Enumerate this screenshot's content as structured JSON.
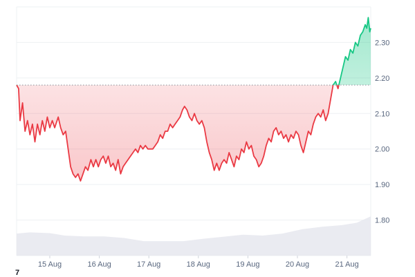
{
  "chart_data": {
    "type": "area",
    "baseline": 2.18,
    "ylim": [
      1.7,
      2.4
    ],
    "y_ticks": [
      "1.80",
      "1.90",
      "2.00",
      "2.10",
      "2.20",
      "2.30"
    ],
    "x_ticks": [
      "15 Aug",
      "16 Aug",
      "17 Aug",
      "18 Aug",
      "19 Aug",
      "20 Aug",
      "21 Aug"
    ],
    "xlim_days": [
      14.33,
      21.48
    ],
    "grid": true,
    "colors": {
      "below_baseline": "#ea3943",
      "above_baseline": "#16c784",
      "volume": "#e6e8ee",
      "grid": "#eef0f3"
    },
    "series": [
      {
        "values": [
          [
            14.33,
            2.18
          ],
          [
            14.37,
            2.17
          ],
          [
            14.4,
            2.08
          ],
          [
            14.45,
            2.13
          ],
          [
            14.5,
            2.05
          ],
          [
            14.55,
            2.08
          ],
          [
            14.6,
            2.04
          ],
          [
            14.65,
            2.07
          ],
          [
            14.7,
            2.02
          ],
          [
            14.75,
            2.07
          ],
          [
            14.8,
            2.04
          ],
          [
            14.85,
            2.08
          ],
          [
            14.9,
            2.05
          ],
          [
            14.95,
            2.09
          ],
          [
            15.0,
            2.06
          ],
          [
            15.05,
            2.08
          ],
          [
            15.1,
            2.06
          ],
          [
            15.17,
            2.09
          ],
          [
            15.22,
            2.06
          ],
          [
            15.27,
            2.04
          ],
          [
            15.32,
            2.05
          ],
          [
            15.37,
            2.0
          ],
          [
            15.42,
            1.95
          ],
          [
            15.47,
            1.93
          ],
          [
            15.52,
            1.92
          ],
          [
            15.57,
            1.93
          ],
          [
            15.62,
            1.91
          ],
          [
            15.67,
            1.93
          ],
          [
            15.72,
            1.95
          ],
          [
            15.77,
            1.94
          ],
          [
            15.83,
            1.97
          ],
          [
            15.88,
            1.95
          ],
          [
            15.93,
            1.97
          ],
          [
            15.98,
            1.95
          ],
          [
            16.03,
            1.97
          ],
          [
            16.08,
            1.98
          ],
          [
            16.13,
            1.96
          ],
          [
            16.18,
            1.98
          ],
          [
            16.23,
            1.95
          ],
          [
            16.28,
            1.96
          ],
          [
            16.33,
            1.94
          ],
          [
            16.38,
            1.97
          ],
          [
            16.43,
            1.93
          ],
          [
            16.48,
            1.95
          ],
          [
            16.53,
            1.96
          ],
          [
            16.58,
            1.97
          ],
          [
            16.63,
            1.98
          ],
          [
            16.68,
            1.99
          ],
          [
            16.73,
            2.0
          ],
          [
            16.78,
            1.99
          ],
          [
            16.83,
            2.01
          ],
          [
            16.88,
            2.0
          ],
          [
            16.93,
            2.01
          ],
          [
            16.98,
            2.0
          ],
          [
            17.03,
            2.0
          ],
          [
            17.08,
            2.0
          ],
          [
            17.13,
            2.01
          ],
          [
            17.18,
            2.02
          ],
          [
            17.23,
            2.04
          ],
          [
            17.28,
            2.03
          ],
          [
            17.33,
            2.05
          ],
          [
            17.38,
            2.05
          ],
          [
            17.43,
            2.07
          ],
          [
            17.48,
            2.06
          ],
          [
            17.53,
            2.07
          ],
          [
            17.58,
            2.08
          ],
          [
            17.63,
            2.09
          ],
          [
            17.68,
            2.11
          ],
          [
            17.72,
            2.12
          ],
          [
            17.77,
            2.11
          ],
          [
            17.82,
            2.09
          ],
          [
            17.87,
            2.08
          ],
          [
            17.92,
            2.1
          ],
          [
            17.97,
            2.08
          ],
          [
            18.02,
            2.07
          ],
          [
            18.07,
            2.08
          ],
          [
            18.12,
            2.06
          ],
          [
            18.17,
            2.02
          ],
          [
            18.22,
            1.99
          ],
          [
            18.27,
            1.97
          ],
          [
            18.32,
            1.94
          ],
          [
            18.37,
            1.96
          ],
          [
            18.42,
            1.94
          ],
          [
            18.47,
            1.96
          ],
          [
            18.52,
            1.97
          ],
          [
            18.57,
            1.96
          ],
          [
            18.62,
            1.99
          ],
          [
            18.67,
            1.97
          ],
          [
            18.72,
            1.95
          ],
          [
            18.77,
            1.98
          ],
          [
            18.82,
            1.97
          ],
          [
            18.87,
            2.0
          ],
          [
            18.92,
            1.99
          ],
          [
            18.97,
            2.02
          ],
          [
            19.02,
            2.0
          ],
          [
            19.07,
            2.01
          ],
          [
            19.12,
            1.98
          ],
          [
            19.17,
            1.97
          ],
          [
            19.22,
            1.95
          ],
          [
            19.27,
            1.96
          ],
          [
            19.32,
            1.98
          ],
          [
            19.37,
            2.01
          ],
          [
            19.42,
            2.03
          ],
          [
            19.47,
            2.02
          ],
          [
            19.52,
            2.05
          ],
          [
            19.57,
            2.06
          ],
          [
            19.62,
            2.04
          ],
          [
            19.67,
            2.05
          ],
          [
            19.72,
            2.03
          ],
          [
            19.77,
            2.04
          ],
          [
            19.82,
            2.02
          ],
          [
            19.87,
            2.04
          ],
          [
            19.92,
            2.03
          ],
          [
            19.97,
            2.05
          ],
          [
            20.02,
            2.04
          ],
          [
            20.07,
            2.01
          ],
          [
            20.12,
            1.99
          ],
          [
            20.17,
            2.02
          ],
          [
            20.22,
            2.05
          ],
          [
            20.27,
            2.04
          ],
          [
            20.32,
            2.07
          ],
          [
            20.37,
            2.09
          ],
          [
            20.42,
            2.1
          ],
          [
            20.47,
            2.09
          ],
          [
            20.52,
            2.11
          ],
          [
            20.57,
            2.08
          ],
          [
            20.62,
            2.1
          ],
          [
            20.67,
            2.14
          ],
          [
            20.72,
            2.18
          ],
          [
            20.77,
            2.19
          ],
          [
            20.82,
            2.17
          ],
          [
            20.87,
            2.2
          ],
          [
            20.92,
            2.23
          ],
          [
            20.97,
            2.26
          ],
          [
            21.02,
            2.25
          ],
          [
            21.07,
            2.28
          ],
          [
            21.12,
            2.27
          ],
          [
            21.17,
            2.3
          ],
          [
            21.22,
            2.29
          ],
          [
            21.27,
            2.32
          ],
          [
            21.32,
            2.33
          ],
          [
            21.37,
            2.35
          ],
          [
            21.4,
            2.34
          ],
          [
            21.43,
            2.37
          ],
          [
            21.46,
            2.33
          ],
          [
            21.48,
            2.34
          ]
        ]
      }
    ],
    "volume": [
      [
        14.33,
        0.55
      ],
      [
        14.6,
        0.58
      ],
      [
        15.0,
        0.56
      ],
      [
        15.3,
        0.5
      ],
      [
        15.7,
        0.48
      ],
      [
        16.1,
        0.48
      ],
      [
        16.5,
        0.44
      ],
      [
        16.9,
        0.36
      ],
      [
        17.3,
        0.36
      ],
      [
        17.7,
        0.36
      ],
      [
        18.1,
        0.42
      ],
      [
        18.5,
        0.47
      ],
      [
        18.9,
        0.52
      ],
      [
        19.3,
        0.5
      ],
      [
        19.7,
        0.55
      ],
      [
        20.1,
        0.66
      ],
      [
        20.5,
        0.72
      ],
      [
        20.9,
        0.76
      ],
      [
        21.2,
        0.82
      ],
      [
        21.48,
        0.98
      ]
    ]
  },
  "watermark": {
    "text": "7"
  }
}
